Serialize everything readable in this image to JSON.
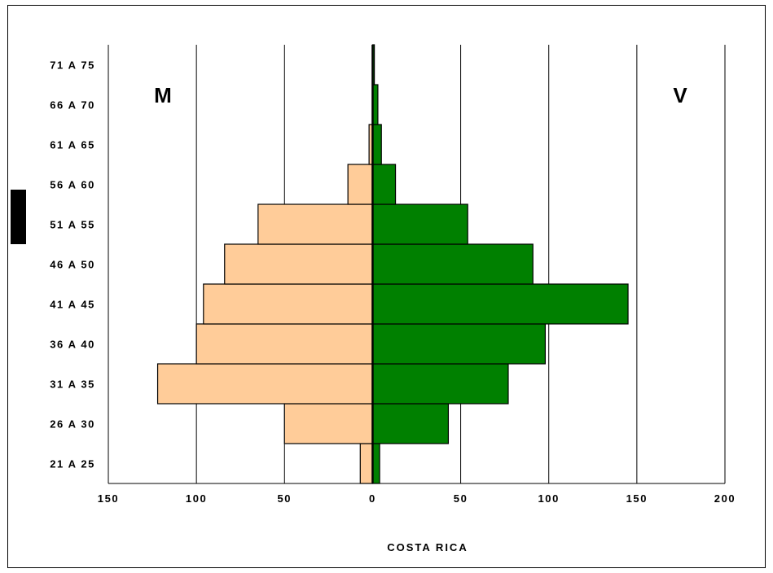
{
  "chart_data": {
    "type": "bar",
    "orientation": "horizontal",
    "layout": "population-pyramid",
    "categories": [
      "21 A 25",
      "26 A 30",
      "31 A 35",
      "36 A 40",
      "41 A 45",
      "46 A 50",
      "51 A 55",
      "56 A 60",
      "61 A 65",
      "66 A 70",
      "71 A 75"
    ],
    "series": [
      {
        "name": "M",
        "side": "left",
        "color": "#ffcc99",
        "values": [
          7,
          50,
          122,
          100,
          96,
          84,
          65,
          14,
          2,
          0,
          0
        ]
      },
      {
        "name": "V",
        "side": "right",
        "color": "#008000",
        "values": [
          4,
          43,
          77,
          98,
          145,
          91,
          54,
          13,
          5,
          3,
          1
        ]
      }
    ],
    "xlim": [
      -150,
      200
    ],
    "xticks": [
      -150,
      -100,
      -50,
      0,
      50,
      100,
      150,
      200
    ],
    "xtick_labels": [
      "150",
      "100",
      "50",
      "0",
      "50",
      "100",
      "150",
      "200"
    ],
    "xlabel": "COSTA RICA",
    "ylabel": "",
    "title": "",
    "grid": "vertical",
    "corner_labels": {
      "left": "M",
      "right": "V"
    }
  }
}
